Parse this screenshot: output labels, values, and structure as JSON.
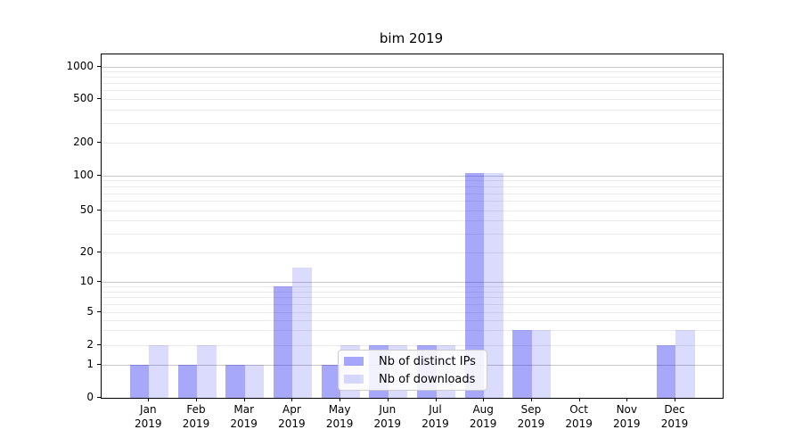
{
  "title": "bim 2019",
  "legend": {
    "items": [
      {
        "label": "Nb of distinct IPs",
        "key": "distinct-ips",
        "color": "rgba(0,0,240,0.34)"
      },
      {
        "label": "Nb of downloads",
        "key": "downloads",
        "color": "rgba(0,0,240,0.14)"
      }
    ]
  },
  "axis": {
    "y_tick_labels": [
      "0",
      "1",
      "2",
      "5",
      "10",
      "20",
      "50",
      "100",
      "200",
      "500",
      "1000"
    ],
    "x_tick_months": [
      "Jan",
      "Feb",
      "Mar",
      "Apr",
      "May",
      "Jun",
      "Jul",
      "Aug",
      "Sep",
      "Oct",
      "Nov",
      "Dec"
    ],
    "x_tick_year": "2019"
  },
  "chart_data": {
    "type": "bar",
    "title": "bim 2019",
    "categories": [
      "Jan 2019",
      "Feb 2019",
      "Mar 2019",
      "Apr 2019",
      "May 2019",
      "Jun 2019",
      "Jul 2019",
      "Aug 2019",
      "Sep 2019",
      "Oct 2019",
      "Nov 2019",
      "Dec 2019"
    ],
    "series": [
      {
        "name": "Nb of distinct IPs",
        "values": [
          1,
          1,
          1,
          9,
          1,
          2,
          2,
          105,
          3,
          0,
          0,
          2
        ]
      },
      {
        "name": "Nb of downloads",
        "values": [
          2,
          2,
          1,
          14,
          2,
          2,
          2,
          105,
          3,
          0,
          0,
          3
        ]
      }
    ],
    "xlabel": "",
    "ylabel": "",
    "yscale": "symlog",
    "yticks": [
      0,
      1,
      2,
      5,
      10,
      20,
      50,
      100,
      200,
      500,
      1000
    ],
    "ylim": [
      0,
      1300
    ],
    "grid": "horizontal major and minor gridlines",
    "legend_position": "inside lower-center",
    "colors": {
      "bar_distinct_ips": "rgba(0,0,240,0.34)",
      "bar_downloads": "rgba(0,0,240,0.14)",
      "grid_major": "#c8c8c8",
      "grid_minor": "#ebebeb",
      "spine": "#000000",
      "background": "#ffffff"
    }
  }
}
